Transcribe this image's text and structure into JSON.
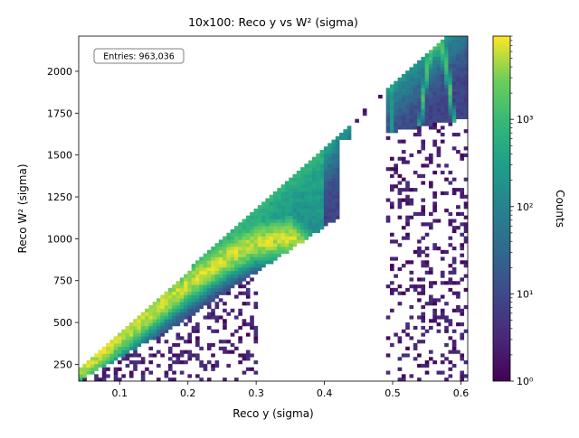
{
  "chart_data": {
    "type": "heatmap",
    "title": "10x100: Reco y vs W² (sigma)",
    "xlabel": "Reco y (sigma)",
    "ylabel": "Reco W² (sigma)",
    "xlim": [
      0.04,
      0.61
    ],
    "ylim": [
      150,
      2210
    ],
    "x_ticks": [
      "0.1",
      "0.2",
      "0.3",
      "0.4",
      "0.5",
      "0.6"
    ],
    "x_tick_values": [
      0.1,
      0.2,
      0.3,
      0.4,
      0.5,
      0.6
    ],
    "y_ticks": [
      "250",
      "500",
      "750",
      "1000",
      "1250",
      "1500",
      "1750",
      "2000"
    ],
    "y_tick_values": [
      250,
      500,
      750,
      1000,
      1250,
      1500,
      1750,
      2000
    ],
    "annotation": "Entries: 963,036",
    "colorbar": {
      "label": "Counts",
      "scale": "log",
      "range": [
        1,
        9000
      ],
      "ticks": [
        1,
        10,
        100,
        1000
      ],
      "tick_labels": [
        "10⁰",
        "10¹",
        "10²",
        "10³"
      ]
    },
    "colormap": "viridis",
    "features": {
      "lower_band_y_range": [
        0.045,
        0.29
      ],
      "upper_boundary_slope_W2_per_y": 3700,
      "ridge": [
        [
          0.05,
          240
        ],
        [
          0.1,
          410
        ],
        [
          0.15,
          570
        ],
        [
          0.2,
          730
        ],
        [
          0.25,
          870
        ],
        [
          0.3,
          980
        ],
        [
          0.35,
          1010
        ],
        [
          0.38,
          900
        ],
        [
          0.395,
          820
        ]
      ],
      "upper_ridge_peak": [
        0.565,
        2190
      ],
      "vertical_stripe_y": 0.5,
      "empty_gap_y_range": [
        0.44,
        0.49
      ]
    }
  }
}
